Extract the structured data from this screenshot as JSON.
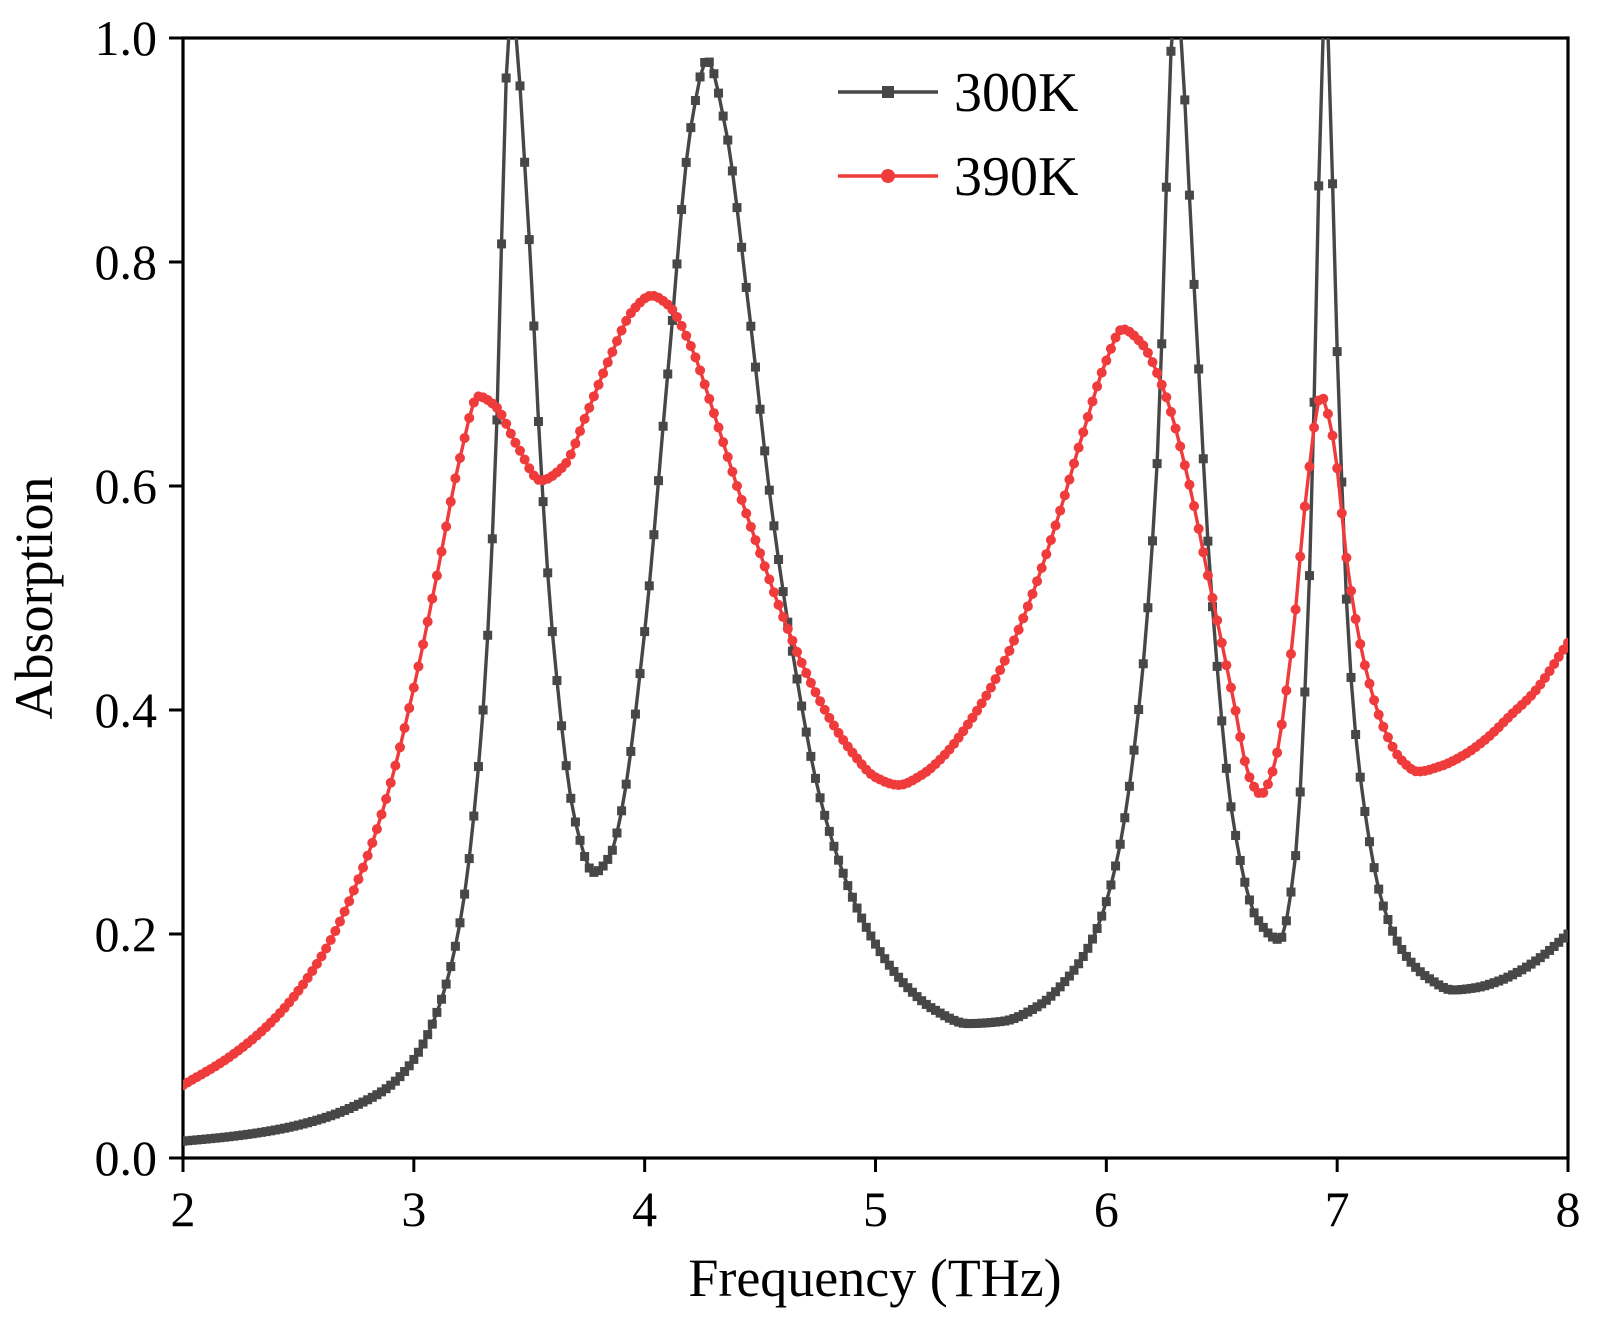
{
  "chart_data": {
    "type": "line",
    "title": "",
    "xlabel": "Frequency (THz)",
    "ylabel": "Absorption",
    "xlim": [
      2,
      8
    ],
    "ylim": [
      0,
      1
    ],
    "x_ticks": [
      2,
      3,
      4,
      5,
      6,
      7,
      8
    ],
    "x_tick_labels": [
      "2",
      "3",
      "4",
      "5",
      "6",
      "7",
      "8"
    ],
    "y_ticks": [
      0.0,
      0.2,
      0.4,
      0.6,
      0.8,
      1.0
    ],
    "y_tick_labels": [
      "0.0",
      "0.2",
      "0.4",
      "0.6",
      "0.8",
      "1.0"
    ],
    "grid": false,
    "legend_position": "top-center",
    "axis_color": "#000000",
    "marker_step_thz": 0.02,
    "series": [
      {
        "name": "300K",
        "color": "#474747",
        "marker": "square",
        "points": [
          [
            2.0,
            0.015
          ],
          [
            2.2,
            0.019
          ],
          [
            2.4,
            0.025
          ],
          [
            2.6,
            0.035
          ],
          [
            2.8,
            0.052
          ],
          [
            2.9,
            0.065
          ],
          [
            3.0,
            0.088
          ],
          [
            3.1,
            0.13
          ],
          [
            3.2,
            0.21
          ],
          [
            3.3,
            0.4
          ],
          [
            3.35,
            0.6
          ],
          [
            3.42,
            1.03
          ],
          [
            3.5,
            0.82
          ],
          [
            3.55,
            0.62
          ],
          [
            3.6,
            0.47
          ],
          [
            3.7,
            0.3
          ],
          [
            3.78,
            0.255
          ],
          [
            3.85,
            0.27
          ],
          [
            3.9,
            0.31
          ],
          [
            4.0,
            0.47
          ],
          [
            4.1,
            0.7
          ],
          [
            4.2,
            0.92
          ],
          [
            4.27,
            0.98
          ],
          [
            4.35,
            0.92
          ],
          [
            4.45,
            0.76
          ],
          [
            4.55,
            0.58
          ],
          [
            4.65,
            0.44
          ],
          [
            4.75,
            0.33
          ],
          [
            4.85,
            0.26
          ],
          [
            4.95,
            0.21
          ],
          [
            5.05,
            0.175
          ],
          [
            5.15,
            0.15
          ],
          [
            5.25,
            0.133
          ],
          [
            5.4,
            0.12
          ],
          [
            5.55,
            0.122
          ],
          [
            5.7,
            0.135
          ],
          [
            5.85,
            0.165
          ],
          [
            5.95,
            0.2
          ],
          [
            6.05,
            0.27
          ],
          [
            6.15,
            0.42
          ],
          [
            6.22,
            0.62
          ],
          [
            6.3,
            1.04
          ],
          [
            6.38,
            0.78
          ],
          [
            6.45,
            0.52
          ],
          [
            6.55,
            0.3
          ],
          [
            6.65,
            0.215
          ],
          [
            6.75,
            0.195
          ],
          [
            6.82,
            0.27
          ],
          [
            6.88,
            0.52
          ],
          [
            6.95,
            1.03
          ],
          [
            7.0,
            0.72
          ],
          [
            7.05,
            0.46
          ],
          [
            7.1,
            0.34
          ],
          [
            7.2,
            0.225
          ],
          [
            7.3,
            0.18
          ],
          [
            7.4,
            0.16
          ],
          [
            7.5,
            0.15
          ],
          [
            7.6,
            0.152
          ],
          [
            7.7,
            0.158
          ],
          [
            7.8,
            0.168
          ],
          [
            7.9,
            0.182
          ],
          [
            8.0,
            0.2
          ]
        ]
      },
      {
        "name": "390K",
        "color": "#ef3b3b",
        "marker": "circle",
        "points": [
          [
            2.0,
            0.065
          ],
          [
            2.2,
            0.09
          ],
          [
            2.4,
            0.125
          ],
          [
            2.6,
            0.18
          ],
          [
            2.8,
            0.27
          ],
          [
            2.9,
            0.335
          ],
          [
            3.0,
            0.42
          ],
          [
            3.1,
            0.52
          ],
          [
            3.2,
            0.625
          ],
          [
            3.28,
            0.68
          ],
          [
            3.35,
            0.672
          ],
          [
            3.45,
            0.635
          ],
          [
            3.55,
            0.605
          ],
          [
            3.65,
            0.618
          ],
          [
            3.75,
            0.665
          ],
          [
            3.85,
            0.715
          ],
          [
            3.95,
            0.757
          ],
          [
            4.03,
            0.77
          ],
          [
            4.1,
            0.762
          ],
          [
            4.2,
            0.725
          ],
          [
            4.3,
            0.665
          ],
          [
            4.4,
            0.6
          ],
          [
            4.5,
            0.54
          ],
          [
            4.6,
            0.483
          ],
          [
            4.7,
            0.433
          ],
          [
            4.8,
            0.393
          ],
          [
            4.9,
            0.362
          ],
          [
            5.0,
            0.34
          ],
          [
            5.1,
            0.333
          ],
          [
            5.2,
            0.342
          ],
          [
            5.3,
            0.36
          ],
          [
            5.4,
            0.387
          ],
          [
            5.5,
            0.42
          ],
          [
            5.6,
            0.462
          ],
          [
            5.7,
            0.515
          ],
          [
            5.8,
            0.578
          ],
          [
            5.9,
            0.648
          ],
          [
            6.0,
            0.712
          ],
          [
            6.07,
            0.74
          ],
          [
            6.15,
            0.728
          ],
          [
            6.25,
            0.685
          ],
          [
            6.35,
            0.61
          ],
          [
            6.45,
            0.51
          ],
          [
            6.55,
            0.41
          ],
          [
            6.62,
            0.34
          ],
          [
            6.67,
            0.325
          ],
          [
            6.72,
            0.345
          ],
          [
            6.8,
            0.45
          ],
          [
            6.87,
            0.6
          ],
          [
            6.93,
            0.68
          ],
          [
            6.98,
            0.645
          ],
          [
            7.05,
            0.52
          ],
          [
            7.12,
            0.44
          ],
          [
            7.2,
            0.385
          ],
          [
            7.28,
            0.355
          ],
          [
            7.35,
            0.345
          ],
          [
            7.45,
            0.35
          ],
          [
            7.55,
            0.36
          ],
          [
            7.65,
            0.375
          ],
          [
            7.75,
            0.395
          ],
          [
            7.85,
            0.415
          ],
          [
            8.0,
            0.46
          ]
        ]
      }
    ]
  }
}
